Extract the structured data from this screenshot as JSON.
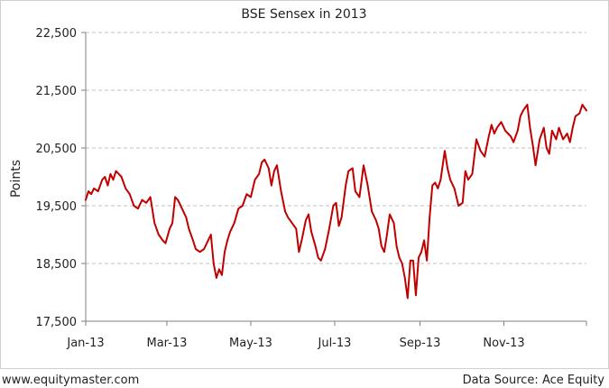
{
  "chart_data": {
    "type": "line",
    "title": "BSE Sensex in 2013",
    "xlabel": "",
    "ylabel": "Points",
    "ylim": [
      17500,
      22500
    ],
    "y_ticks": [
      "17,500",
      "18,500",
      "19,500",
      "20,500",
      "21,500",
      "22,500"
    ],
    "y_tick_values": [
      17500,
      18500,
      19500,
      20500,
      21500,
      22500
    ],
    "x_tick_labels": [
      "Jan-13",
      "Mar-13",
      "May-13",
      "Jul-13",
      "Sep-13",
      "Nov-13"
    ],
    "x_start": "2013-01-01",
    "x_end": "2013-12-31",
    "x_tick_dates": [
      "2013-01-01",
      "2013-03-01",
      "2013-05-01",
      "2013-07-01",
      "2013-09-01",
      "2013-11-01"
    ],
    "grid": true,
    "legend": "none",
    "line_color": "#c00000",
    "series": [
      {
        "name": "",
        "x": [
          "2013-01-01",
          "2013-01-03",
          "2013-01-05",
          "2013-01-07",
          "2013-01-10",
          "2013-01-13",
          "2013-01-15",
          "2013-01-17",
          "2013-01-19",
          "2013-01-21",
          "2013-01-23",
          "2013-01-25",
          "2013-01-27",
          "2013-01-30",
          "2013-02-02",
          "2013-02-05",
          "2013-02-08",
          "2013-02-11",
          "2013-02-14",
          "2013-02-17",
          "2013-02-20",
          "2013-02-23",
          "2013-02-26",
          "2013-02-28",
          "2013-03-03",
          "2013-03-05",
          "2013-03-07",
          "2013-03-09",
          "2013-03-12",
          "2013-03-15",
          "2013-03-17",
          "2013-03-20",
          "2013-03-22",
          "2013-03-25",
          "2013-03-28",
          "2013-03-31",
          "2013-04-02",
          "2013-04-04",
          "2013-04-06",
          "2013-04-08",
          "2013-04-10",
          "2013-04-12",
          "2013-04-14",
          "2013-04-16",
          "2013-04-19",
          "2013-04-22",
          "2013-04-25",
          "2013-04-28",
          "2013-05-01",
          "2013-05-04",
          "2013-05-07",
          "2013-05-09",
          "2013-05-11",
          "2013-05-14",
          "2013-05-16",
          "2013-05-18",
          "2013-05-20",
          "2013-05-23",
          "2013-05-26",
          "2013-05-28",
          "2013-05-31",
          "2013-06-03",
          "2013-06-05",
          "2013-06-07",
          "2013-06-10",
          "2013-06-12",
          "2013-06-14",
          "2013-06-17",
          "2013-06-19",
          "2013-06-21",
          "2013-06-24",
          "2013-06-27",
          "2013-06-30",
          "2013-07-02",
          "2013-07-04",
          "2013-07-06",
          "2013-07-09",
          "2013-07-11",
          "2013-07-14",
          "2013-07-16",
          "2013-07-19",
          "2013-07-22",
          "2013-07-25",
          "2013-07-28",
          "2013-07-31",
          "2013-08-02",
          "2013-08-04",
          "2013-08-06",
          "2013-08-08",
          "2013-08-10",
          "2013-08-13",
          "2013-08-15",
          "2013-08-17",
          "2013-08-19",
          "2013-08-21",
          "2013-08-23",
          "2013-08-25",
          "2013-08-27",
          "2013-08-29",
          "2013-08-31",
          "2013-09-02",
          "2013-09-04",
          "2013-09-06",
          "2013-09-08",
          "2013-09-10",
          "2013-09-12",
          "2013-09-14",
          "2013-09-16",
          "2013-09-19",
          "2013-09-21",
          "2013-09-23",
          "2013-09-26",
          "2013-09-29",
          "2013-10-02",
          "2013-10-04",
          "2013-10-06",
          "2013-10-09",
          "2013-10-12",
          "2013-10-15",
          "2013-10-18",
          "2013-10-21",
          "2013-10-23",
          "2013-10-25",
          "2013-10-27",
          "2013-10-30",
          "2013-11-02",
          "2013-11-04",
          "2013-11-06",
          "2013-11-08",
          "2013-11-11",
          "2013-11-13",
          "2013-11-15",
          "2013-11-18",
          "2013-11-20",
          "2013-11-22",
          "2013-11-24",
          "2013-11-27",
          "2013-11-30",
          "2013-12-02",
          "2013-12-04",
          "2013-12-06",
          "2013-12-09",
          "2013-12-11",
          "2013-12-14",
          "2013-12-17",
          "2013-12-19",
          "2013-12-21",
          "2013-12-23",
          "2013-12-26",
          "2013-12-28",
          "2013-12-31"
        ],
        "values": [
          19600,
          19750,
          19700,
          19800,
          19750,
          19950,
          20000,
          19850,
          20050,
          19950,
          20100,
          20050,
          20000,
          19800,
          19700,
          19500,
          19450,
          19600,
          19550,
          19650,
          19200,
          19000,
          18900,
          18850,
          19100,
          19200,
          19650,
          19600,
          19450,
          19300,
          19100,
          18900,
          18750,
          18700,
          18750,
          18900,
          19000,
          18500,
          18250,
          18400,
          18300,
          18700,
          18900,
          19050,
          19200,
          19450,
          19500,
          19700,
          19650,
          19950,
          20050,
          20250,
          20300,
          20150,
          19850,
          20100,
          20200,
          19750,
          19400,
          19300,
          19200,
          19100,
          18700,
          18900,
          19250,
          19350,
          19050,
          18800,
          18600,
          18550,
          18750,
          19100,
          19500,
          19550,
          19150,
          19300,
          19850,
          20100,
          20150,
          19750,
          19650,
          20200,
          19850,
          19400,
          19250,
          19100,
          18800,
          18700,
          19000,
          19350,
          19200,
          18800,
          18600,
          18500,
          18250,
          17900,
          18550,
          18550,
          17950,
          18600,
          18700,
          18900,
          18550,
          19300,
          19850,
          19900,
          19800,
          19950,
          20450,
          20150,
          19950,
          19800,
          19500,
          19550,
          20100,
          19950,
          20050,
          20650,
          20450,
          20350,
          20700,
          20900,
          20750,
          20850,
          20950,
          20800,
          20750,
          20700,
          20600,
          20800,
          21050,
          21150,
          21250,
          20850,
          20550,
          20200,
          20650,
          20850,
          20500,
          20400,
          20800,
          20650,
          20850,
          20650,
          20750,
          20600,
          20850,
          21050,
          21100,
          21250,
          21150
        ]
      }
    ]
  },
  "footer": {
    "left": "www.equitymaster.com",
    "right": "Data Source: Ace Equity"
  }
}
